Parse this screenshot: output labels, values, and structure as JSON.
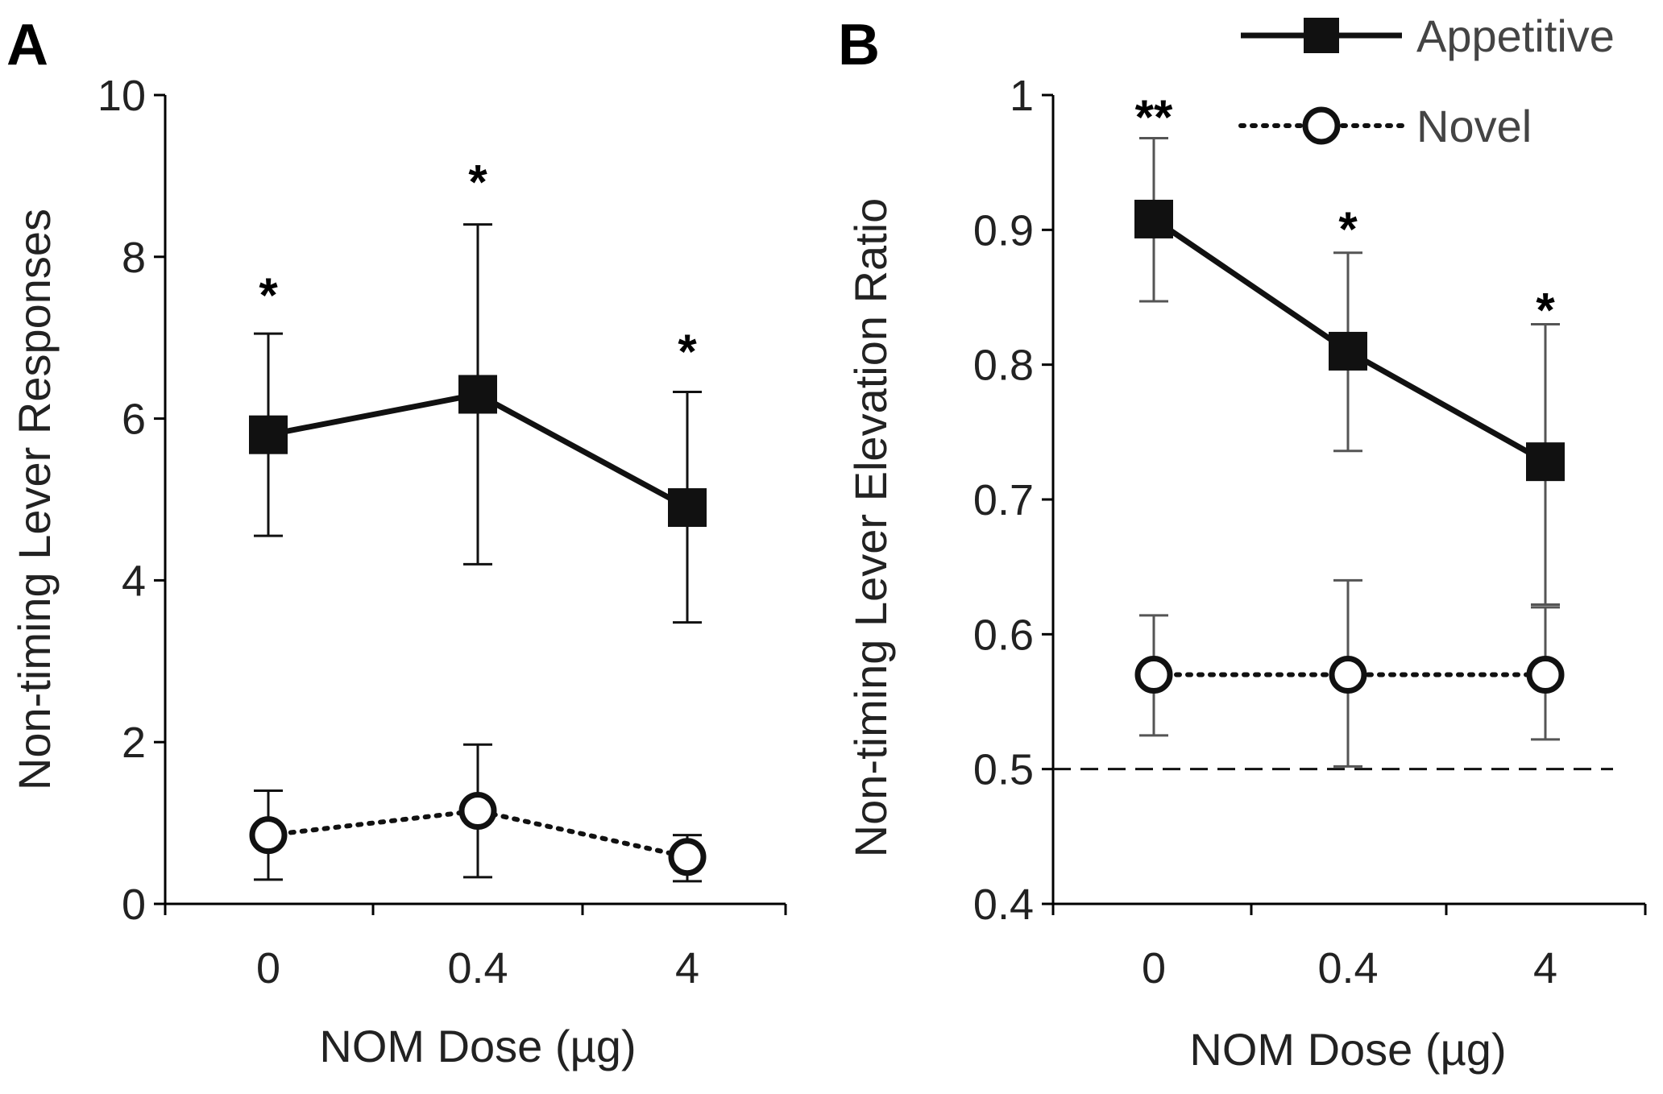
{
  "legend": {
    "appetitive": "Appetitive",
    "novel": "Novel"
  },
  "colors": {
    "appetitive": "#111111",
    "novel": "#111111",
    "errorbar_a": "#111111",
    "errorbar_b": "#555555"
  },
  "chart_data": [
    {
      "panel": "A",
      "type": "line",
      "xlabel": "NOM Dose (µg)",
      "ylabel": "Non-timing Lever Responses",
      "categories": [
        "0",
        "0.4",
        "4"
      ],
      "ylim": [
        0,
        10
      ],
      "yticks": [
        "0",
        "2",
        "4",
        "6",
        "8",
        "10"
      ],
      "series": [
        {
          "name": "Appetitive",
          "marker": "filled-square",
          "line": "solid",
          "values": [
            5.8,
            6.3,
            4.9
          ],
          "err_low": [
            4.55,
            4.2,
            3.48
          ],
          "err_high": [
            7.05,
            8.4,
            6.33
          ]
        },
        {
          "name": "Novel",
          "marker": "open-circle",
          "line": "dotted",
          "values": [
            0.85,
            1.15,
            0.58
          ],
          "err_low": [
            0.3,
            0.33,
            0.28
          ],
          "err_high": [
            1.4,
            1.97,
            0.85
          ]
        }
      ],
      "annotations": [
        "*",
        "*",
        "*"
      ],
      "annotation_y": [
        7.6,
        9.0,
        6.9
      ]
    },
    {
      "panel": "B",
      "type": "line",
      "xlabel": "NOM Dose (µg)",
      "ylabel": "Non-timing Lever Elevation Ratio",
      "categories": [
        "0",
        "0.4",
        "4"
      ],
      "ylim": [
        0.4,
        1.0
      ],
      "yticks": [
        "0.4",
        "0.5",
        "0.6",
        "0.7",
        "0.8",
        "0.9",
        "1"
      ],
      "reference_line": 0.5,
      "series": [
        {
          "name": "Appetitive",
          "marker": "filled-square",
          "line": "solid",
          "values": [
            0.908,
            0.81,
            0.728
          ],
          "err_low": [
            0.847,
            0.736,
            0.622
          ],
          "err_high": [
            0.968,
            0.883,
            0.83
          ]
        },
        {
          "name": "Novel",
          "marker": "open-circle",
          "line": "dotted",
          "values": [
            0.57,
            0.57,
            0.57
          ],
          "err_low": [
            0.525,
            0.502,
            0.522
          ],
          "err_high": [
            0.614,
            0.64,
            0.62
          ]
        }
      ],
      "annotations": [
        "**",
        "*",
        "*"
      ],
      "annotation_y": [
        0.988,
        0.905,
        0.845
      ]
    }
  ]
}
